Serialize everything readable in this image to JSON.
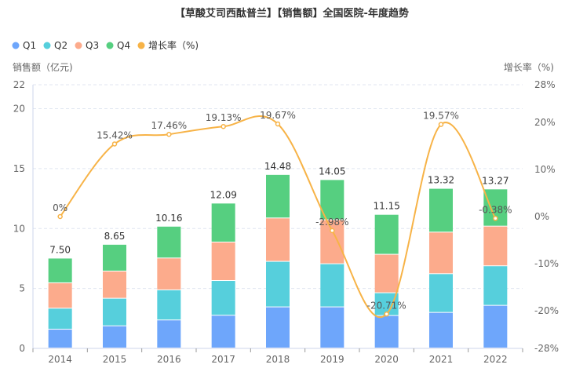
{
  "chart_data": {
    "type": "bar",
    "subtype": "stacked-bar-with-line",
    "title": "【草酸艾司西酞普兰】【销售额】全国医院-年度趋势",
    "xlabel": "",
    "ylabel": "销售额（亿元)",
    "ylabel_right": "增长率（%)",
    "ylim": [
      0,
      22
    ],
    "ylim_right": [
      -28,
      28
    ],
    "yticks": [
      "0",
      "5",
      "10",
      "15",
      "20",
      "22"
    ],
    "ytick_values": [
      0,
      5,
      10,
      15,
      20,
      22
    ],
    "yticks_right": [
      "-28%",
      "-20%",
      "-10%",
      "0%",
      "10%",
      "20%",
      "28%"
    ],
    "ytick_right_values": [
      -28,
      -20,
      -10,
      0,
      10,
      20,
      28
    ],
    "grid": true,
    "legend_position": "top-left",
    "categories": [
      "2014",
      "2015",
      "2016",
      "2017",
      "2018",
      "2019",
      "2020",
      "2021",
      "2022"
    ],
    "series": [
      {
        "name": "Q1",
        "kind": "bar",
        "color": "#6ea6fb",
        "values": [
          1.57,
          1.85,
          2.34,
          2.73,
          3.43,
          3.43,
          2.71,
          2.97,
          3.56
        ]
      },
      {
        "name": "Q2",
        "kind": "bar",
        "color": "#56cfdc",
        "values": [
          1.75,
          2.3,
          2.51,
          2.9,
          3.8,
          3.6,
          1.9,
          3.23,
          3.3
        ]
      },
      {
        "name": "Q3",
        "kind": "bar",
        "color": "#fcab8c",
        "values": [
          2.12,
          2.27,
          2.66,
          3.21,
          3.62,
          3.67,
          3.21,
          3.47,
          3.31
        ]
      },
      {
        "name": "Q4",
        "kind": "bar",
        "color": "#56cf80",
        "values": [
          2.06,
          2.23,
          2.65,
          3.25,
          3.63,
          3.35,
          3.33,
          3.65,
          3.1
        ]
      },
      {
        "name": "增长率（%)",
        "kind": "line",
        "axis": "right",
        "color": "#f7b347",
        "values": [
          0,
          15.42,
          17.46,
          19.13,
          19.67,
          -2.98,
          -20.71,
          19.57,
          -0.38
        ]
      }
    ],
    "totals": [
      7.5,
      8.65,
      10.16,
      12.09,
      14.48,
      14.05,
      11.15,
      13.32,
      13.27
    ],
    "total_labels": [
      "7.50",
      "8.65",
      "10.16",
      "12.09",
      "14.48",
      "14.05",
      "11.15",
      "13.32",
      "13.27"
    ],
    "rate_labels": [
      "0%",
      "15.42%",
      "17.46%",
      "19.13%",
      "19.67%",
      "-2.98%",
      "-20.71%",
      "19.57%",
      "-0.38%"
    ],
    "legend": [
      "Q1",
      "Q2",
      "Q3",
      "Q4",
      "增长率（%)"
    ]
  }
}
